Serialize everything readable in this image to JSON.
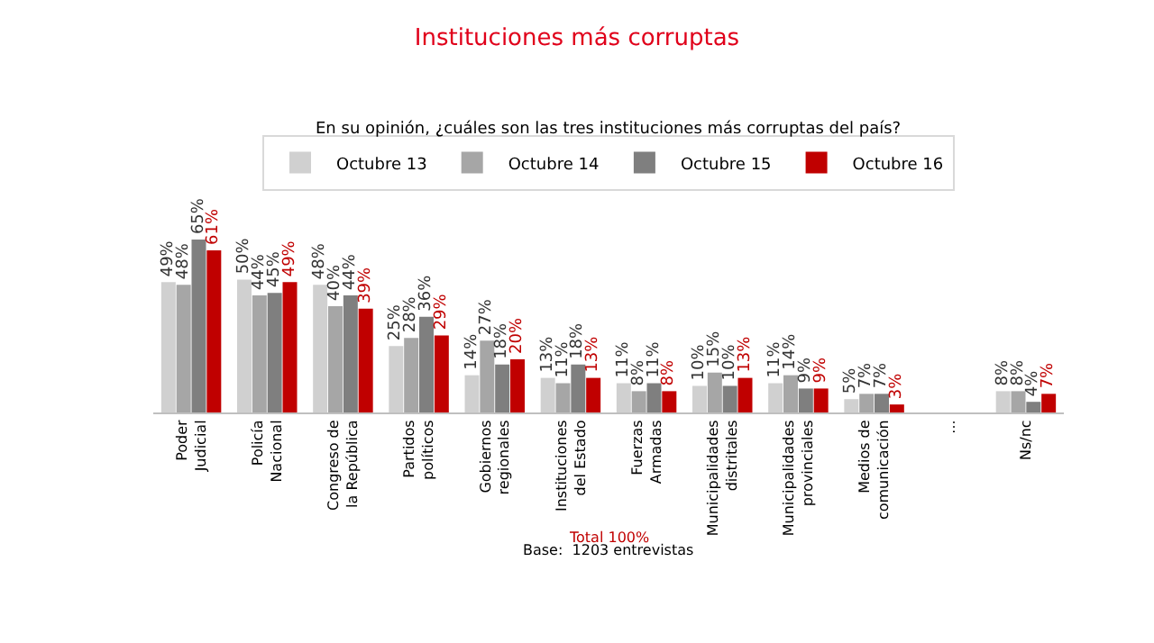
{
  "chart_data": {
    "type": "bar",
    "title": "Instituciones más corruptas",
    "subtitle": "En su opinión, ¿cuáles son las tres instituciones más corruptas del país?",
    "categories": [
      "Poder Judicial",
      "Policía Nacional",
      "Congreso de la República",
      "Partidos políticos",
      "Gobiernos regionales",
      "Instituciones del Estado",
      "Fuerzas Armadas",
      "Municipalidades distritales",
      "Municipalidades provinciales",
      "Medios de comunicación",
      "...",
      "Ns/nc"
    ],
    "series": [
      {
        "name": "Octubre 13",
        "color": "#d0d0d0",
        "values": [
          49,
          50,
          48,
          25,
          14,
          13,
          11,
          10,
          11,
          5,
          null,
          8
        ],
        "value_labels": [
          "49%",
          "50%",
          "48%",
          "25%",
          "14%",
          "13%",
          "11%",
          "10%",
          "11%",
          "5%",
          null,
          "8%"
        ]
      },
      {
        "name": "Octubre 14",
        "color": "#a6a6a6",
        "values": [
          48,
          44,
          40,
          28,
          27,
          11,
          8,
          15,
          14,
          7,
          null,
          8
        ],
        "value_labels": [
          "48%",
          "44%",
          "40%",
          "28%",
          "27%",
          "11%",
          "8%",
          "15%",
          "14%",
          "7%",
          null,
          "8%"
        ]
      },
      {
        "name": "Octubre 15",
        "color": "#7f7f7f",
        "values": [
          65,
          45,
          44,
          36,
          18,
          18,
          11,
          10,
          9,
          7,
          null,
          4
        ],
        "value_labels": [
          "65%",
          "45%",
          "44%",
          "36%",
          "18%",
          "18%",
          "11%",
          "10%",
          "9%",
          "7%",
          null,
          "4%"
        ]
      },
      {
        "name": "Octubre 16",
        "color": "#c00000",
        "values": [
          61,
          49,
          39,
          29,
          20,
          13,
          8,
          13,
          9,
          3,
          null,
          7
        ],
        "value_labels": [
          "61%",
          "49%",
          "39%",
          "29%",
          "20%",
          "13%",
          "8%",
          "13%",
          "9%",
          "3%",
          null,
          "7%"
        ]
      }
    ],
    "legend": "top",
    "grid": false,
    "tick_labels": "x",
    "annotations": [
      "Total 100%",
      "Base:  1203 entrevistas"
    ]
  }
}
